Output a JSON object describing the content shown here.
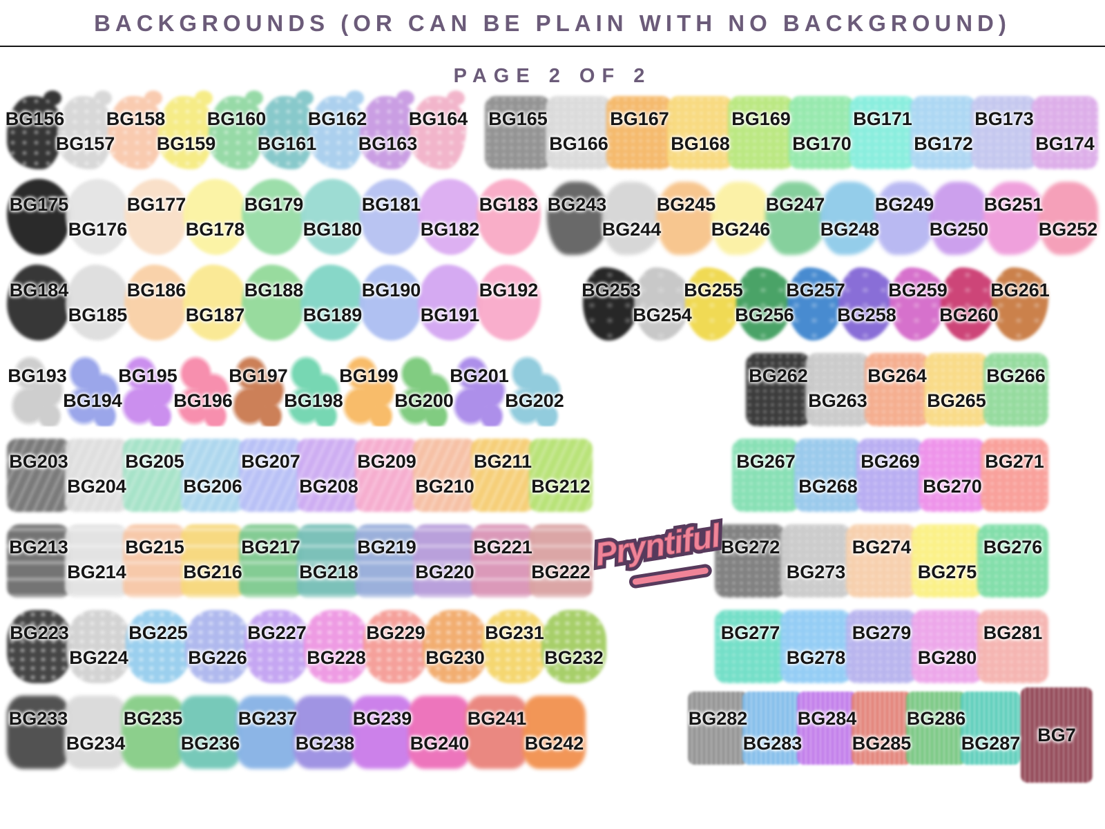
{
  "header": {
    "title": "BACKGROUNDS (OR CAN BE PLAIN WITH NO BACKGROUND)",
    "page": "PAGE 2 OF 2",
    "title_color": "#6b5b79",
    "divider_color": "#141414"
  },
  "logo": {
    "text": "Pryntiful",
    "fill_color": "#f08498",
    "outline_color": "#573a5c"
  },
  "label_text_color": "#161616",
  "rows": [
    {
      "groups": [
        {
          "side": "left",
          "style": "splatter",
          "swatches": [
            {
              "label": "BG156",
              "color": "#2e2e2e"
            },
            {
              "label": "BG157",
              "color": "#d7d7d7"
            },
            {
              "label": "BG158",
              "color": "#f9c9ad"
            },
            {
              "label": "BG159",
              "color": "#f6ec83"
            },
            {
              "label": "BG160",
              "color": "#93d9a4"
            },
            {
              "label": "BG161",
              "color": "#84c7c9"
            },
            {
              "label": "BG162",
              "color": "#a9cfee"
            },
            {
              "label": "BG163",
              "color": "#c89be2"
            },
            {
              "label": "BG164",
              "color": "#f2b3c9"
            }
          ]
        },
        {
          "side": "right",
          "style": "speckle",
          "swatches": [
            {
              "label": "BG165",
              "color": "#8f8f8f"
            },
            {
              "label": "BG166",
              "color": "#dadada"
            },
            {
              "label": "BG167",
              "color": "#f5b868"
            },
            {
              "label": "BG168",
              "color": "#f8d97c"
            },
            {
              "label": "BG169",
              "color": "#b9e87e"
            },
            {
              "label": "BG170",
              "color": "#93e9ab"
            },
            {
              "label": "BG171",
              "color": "#86eedd"
            },
            {
              "label": "BG172",
              "color": "#aad6f3"
            },
            {
              "label": "BG173",
              "color": "#c3c6ef"
            },
            {
              "label": "BG174",
              "color": "#dcabe9"
            }
          ]
        }
      ]
    },
    {
      "groups": [
        {
          "side": "left",
          "style": "oval",
          "swatches": [
            {
              "label": "BG175",
              "color": "#222222"
            },
            {
              "label": "BG176",
              "color": "#e4e4e4"
            },
            {
              "label": "BG177",
              "color": "#f9dfc7"
            },
            {
              "label": "BG178",
              "color": "#fbf3a3"
            },
            {
              "label": "BG179",
              "color": "#98dda7"
            },
            {
              "label": "BG180",
              "color": "#9adbd2"
            },
            {
              "label": "BG181",
              "color": "#b7c2f2"
            },
            {
              "label": "BG182",
              "color": "#dcadf2"
            },
            {
              "label": "BG183",
              "color": "#f9abc6"
            }
          ]
        },
        {
          "side": "right",
          "style": "blob",
          "swatches": [
            {
              "label": "BG243",
              "color": "#636363"
            },
            {
              "label": "BG244",
              "color": "#d6d6d6"
            },
            {
              "label": "BG245",
              "color": "#f7c48b"
            },
            {
              "label": "BG246",
              "color": "#fbf1a4"
            },
            {
              "label": "BG247",
              "color": "#82cf9a"
            },
            {
              "label": "BG248",
              "color": "#90cbea"
            },
            {
              "label": "BG249",
              "color": "#b7b7f2"
            },
            {
              "label": "BG250",
              "color": "#ca9ded"
            },
            {
              "label": "BG251",
              "color": "#ef9ddb"
            },
            {
              "label": "BG252",
              "color": "#f59db7"
            }
          ]
        }
      ]
    },
    {
      "groups": [
        {
          "side": "left",
          "style": "round",
          "swatches": [
            {
              "label": "BG184",
              "color": "#2f2f2f"
            },
            {
              "label": "BG185",
              "color": "#dedede"
            },
            {
              "label": "BG186",
              "color": "#f9d1a7"
            },
            {
              "label": "BG187",
              "color": "#fae992"
            },
            {
              "label": "BG188",
              "color": "#94da9b"
            },
            {
              "label": "BG189",
              "color": "#83d6c6"
            },
            {
              "label": "BG190",
              "color": "#adbff2"
            },
            {
              "label": "BG191",
              "color": "#d4a7f2"
            },
            {
              "label": "BG192",
              "color": "#f9abca"
            }
          ]
        },
        {
          "side": "right",
          "style": "daub",
          "swatches": [
            {
              "label": "BG253",
              "color": "#1f1f1f"
            },
            {
              "label": "BG254",
              "color": "#c6c6c6"
            },
            {
              "label": "BG255",
              "color": "#f0d94e"
            },
            {
              "label": "BG256",
              "color": "#43a061"
            },
            {
              "label": "BG257",
              "color": "#4187cf"
            },
            {
              "label": "BG258",
              "color": "#8569d6"
            },
            {
              "label": "BG259",
              "color": "#d56cca"
            },
            {
              "label": "BG260",
              "color": "#cc3e73"
            },
            {
              "label": "BG261",
              "color": "#c97c44"
            }
          ]
        }
      ]
    },
    {
      "groups": [
        {
          "side": "left",
          "style": "splotch",
          "swatches": [
            {
              "label": "BG193",
              "color": "#cdcdcd"
            },
            {
              "label": "BG194",
              "color": "#97a3ea"
            },
            {
              "label": "BG195",
              "color": "#c98bee"
            },
            {
              "label": "BG196",
              "color": "#f78bab"
            },
            {
              "label": "BG197",
              "color": "#ca7b52"
            },
            {
              "label": "BG198",
              "color": "#72d6b0"
            },
            {
              "label": "BG199",
              "color": "#f8ba64"
            },
            {
              "label": "BG200",
              "color": "#7cca7c"
            },
            {
              "label": "BG201",
              "color": "#aa8bea"
            },
            {
              "label": "BG202",
              "color": "#8ecadc"
            }
          ]
        },
        {
          "side": "right",
          "style": "speckle",
          "swatches": [
            {
              "label": "BG262",
              "color": "#343434"
            },
            {
              "label": "BG263",
              "color": "#c9c9c9"
            },
            {
              "label": "BG264",
              "color": "#f5ab8b"
            },
            {
              "label": "BG265",
              "color": "#f9da84"
            },
            {
              "label": "BG266",
              "color": "#91da9b"
            }
          ]
        }
      ]
    },
    {
      "groups": [
        {
          "side": "left",
          "style": "leafy",
          "swatches": [
            {
              "label": "BG203",
              "color": "#757575"
            },
            {
              "label": "BG204",
              "color": "#dedede"
            },
            {
              "label": "BG205",
              "color": "#a4e2c7"
            },
            {
              "label": "BG206",
              "color": "#abd6ee"
            },
            {
              "label": "BG207",
              "color": "#b7bff6"
            },
            {
              "label": "BG208",
              "color": "#cdabf2"
            },
            {
              "label": "BG209",
              "color": "#f6abce"
            },
            {
              "label": "BG210",
              "color": "#f6bfa3"
            },
            {
              "label": "BG211",
              "color": "#f6ce74"
            },
            {
              "label": "BG212",
              "color": "#b7e274"
            }
          ]
        },
        {
          "side": "right",
          "style": "speckle",
          "swatches": [
            {
              "label": "BG267",
              "color": "#84dfb3"
            },
            {
              "label": "BG268",
              "color": "#97c8ec"
            },
            {
              "label": "BG269",
              "color": "#b7abf2"
            },
            {
              "label": "BG270",
              "color": "#ee8fea"
            },
            {
              "label": "BG271",
              "color": "#f99d97"
            }
          ]
        }
      ]
    },
    {
      "groups": [
        {
          "side": "left",
          "style": "band",
          "swatches": [
            {
              "label": "BG213",
              "color": "#6f6f6f"
            },
            {
              "label": "BG214",
              "color": "#e2e2e2"
            },
            {
              "label": "BG215",
              "color": "#f7c7a7"
            },
            {
              "label": "BG216",
              "color": "#f7d87c"
            },
            {
              "label": "BG217",
              "color": "#80ca90"
            },
            {
              "label": "BG218",
              "color": "#77bfb7"
            },
            {
              "label": "BG219",
              "color": "#97adda"
            },
            {
              "label": "BG220",
              "color": "#b79dda"
            },
            {
              "label": "BG221",
              "color": "#da95b7"
            },
            {
              "label": "BG222",
              "color": "#daa3a3"
            }
          ]
        },
        {
          "side": "right",
          "style": "speckle",
          "swatches": [
            {
              "label": "BG272",
              "color": "#7c7c7c"
            },
            {
              "label": "BG273",
              "color": "#cacaca"
            },
            {
              "label": "BG274",
              "color": "#f7cfab"
            },
            {
              "label": "BG275",
              "color": "#fbf184"
            },
            {
              "label": "BG276",
              "color": "#7edda7"
            }
          ]
        }
      ]
    },
    {
      "groups": [
        {
          "side": "left",
          "style": "bubble",
          "swatches": [
            {
              "label": "BG223",
              "color": "#3e3e3e"
            },
            {
              "label": "BG224",
              "color": "#d2d2d2"
            },
            {
              "label": "BG225",
              "color": "#97ceee"
            },
            {
              "label": "BG226",
              "color": "#adb7ee"
            },
            {
              "label": "BG227",
              "color": "#c3a3f2"
            },
            {
              "label": "BG228",
              "color": "#ee97e2"
            },
            {
              "label": "BG229",
              "color": "#f59d97"
            },
            {
              "label": "BG230",
              "color": "#f2ab6c"
            },
            {
              "label": "BG231",
              "color": "#f5d66c"
            },
            {
              "label": "BG232",
              "color": "#a4ce64"
            }
          ]
        },
        {
          "side": "right",
          "style": "speckle",
          "swatches": [
            {
              "label": "BG277",
              "color": "#6fdec6"
            },
            {
              "label": "BG278",
              "color": "#90ccf5"
            },
            {
              "label": "BG279",
              "color": "#b7b3ee"
            },
            {
              "label": "BG280",
              "color": "#eda4ea"
            },
            {
              "label": "BG281",
              "color": "#f5b3af"
            }
          ]
        }
      ]
    },
    {
      "groups": [
        {
          "side": "left",
          "style": "cloud",
          "swatches": [
            {
              "label": "BG233",
              "color": "#4c4c4c"
            },
            {
              "label": "BG234",
              "color": "#dadada"
            },
            {
              "label": "BG235",
              "color": "#88ce88"
            },
            {
              "label": "BG236",
              "color": "#72c7b7"
            },
            {
              "label": "BG237",
              "color": "#88b3e6"
            },
            {
              "label": "BG238",
              "color": "#9d90e2"
            },
            {
              "label": "BG239",
              "color": "#ca7cea"
            },
            {
              "label": "BG240",
              "color": "#ed70ba"
            },
            {
              "label": "BG241",
              "color": "#ea847c"
            },
            {
              "label": "BG242",
              "color": "#f29251"
            }
          ]
        },
        {
          "side": "right",
          "style": "drip",
          "swatches": [
            {
              "label": "BG282",
              "color": "#8f8f8f"
            },
            {
              "label": "BG283",
              "color": "#7fbbea"
            },
            {
              "label": "BG284",
              "color": "#bf78ea"
            },
            {
              "label": "BG285",
              "color": "#e27f75"
            },
            {
              "label": "BG286",
              "color": "#75c67f"
            },
            {
              "label": "BG287",
              "color": "#5aceba"
            },
            {
              "label": "BG7",
              "color": "#8e4050",
              "tall": true
            }
          ]
        }
      ]
    }
  ]
}
